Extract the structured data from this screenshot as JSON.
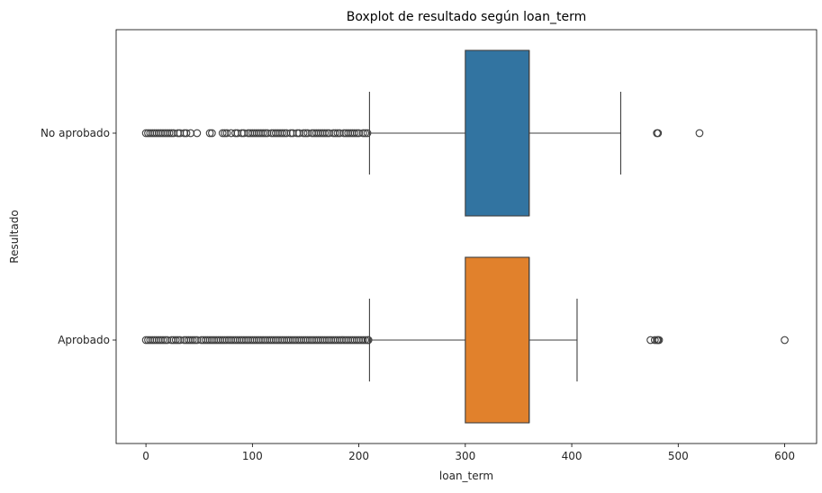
{
  "chart_data": {
    "type": "boxplot",
    "orientation": "horizontal",
    "title": "Boxplot de resultado según loan_term",
    "xlabel": "loan_term",
    "ylabel": "Resultado",
    "xlim": [
      -28,
      630
    ],
    "xticks": [
      0,
      100,
      200,
      300,
      400,
      500,
      600
    ],
    "grid": false,
    "categories": [
      "No aprobado",
      "Aprobado"
    ],
    "series": [
      {
        "name": "No aprobado",
        "color": "#3274a1",
        "whisker_low": 210,
        "q1": 300,
        "median": 360,
        "q3": 360,
        "whisker_high": 446,
        "outliers": [
          0,
          2,
          4,
          6,
          8,
          10,
          12,
          14,
          16,
          18,
          20,
          22,
          24,
          26,
          30,
          32,
          36,
          38,
          42,
          48,
          60,
          62,
          72,
          74,
          76,
          80,
          84,
          86,
          90,
          92,
          96,
          98,
          100,
          102,
          104,
          106,
          108,
          110,
          112,
          114,
          118,
          120,
          122,
          124,
          126,
          128,
          130,
          132,
          136,
          138,
          142,
          144,
          148,
          150,
          152,
          156,
          158,
          160,
          162,
          164,
          166,
          168,
          170,
          172,
          176,
          178,
          180,
          182,
          186,
          188,
          190,
          192,
          194,
          196,
          198,
          200,
          204,
          206,
          208,
          480,
          481,
          520
        ]
      },
      {
        "name": "Aprobado",
        "color": "#e1812c",
        "whisker_low": 210,
        "q1": 300,
        "median": 360,
        "q3": 360,
        "whisker_high": 405,
        "outliers": [
          0,
          2,
          4,
          6,
          8,
          10,
          12,
          14,
          16,
          18,
          20,
          24,
          26,
          28,
          30,
          32,
          36,
          38,
          40,
          42,
          44,
          46,
          48,
          52,
          54,
          56,
          58,
          60,
          62,
          64,
          66,
          68,
          70,
          72,
          74,
          76,
          78,
          80,
          82,
          84,
          86,
          88,
          90,
          92,
          94,
          96,
          98,
          100,
          102,
          104,
          106,
          108,
          110,
          112,
          114,
          116,
          118,
          120,
          122,
          124,
          126,
          128,
          130,
          132,
          134,
          136,
          138,
          140,
          142,
          144,
          146,
          148,
          150,
          152,
          154,
          156,
          158,
          160,
          162,
          164,
          166,
          168,
          170,
          172,
          174,
          176,
          178,
          180,
          182,
          184,
          186,
          188,
          190,
          192,
          194,
          196,
          198,
          200,
          202,
          204,
          206,
          208,
          209,
          474,
          478,
          480,
          481,
          482,
          600
        ]
      }
    ]
  }
}
